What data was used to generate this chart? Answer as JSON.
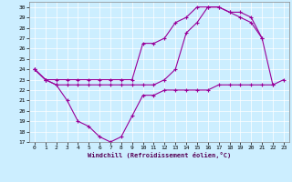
{
  "xlabel": "Windchill (Refroidissement éolien,°C)",
  "xlim": [
    -0.5,
    23.5
  ],
  "ylim": [
    17,
    30.5
  ],
  "yticks": [
    17,
    18,
    19,
    20,
    21,
    22,
    23,
    24,
    25,
    26,
    27,
    28,
    29,
    30
  ],
  "xticks": [
    0,
    1,
    2,
    3,
    4,
    5,
    6,
    7,
    8,
    9,
    10,
    11,
    12,
    13,
    14,
    15,
    16,
    17,
    18,
    19,
    20,
    21,
    22,
    23
  ],
  "bg_color": "#cceeff",
  "line_color": "#990099",
  "series": [
    [
      24.0,
      23.0,
      22.5,
      21.0,
      19.0,
      18.5,
      17.5,
      17.0,
      17.5,
      19.5,
      21.5,
      21.5,
      22.0,
      22.0,
      22.0,
      22.0,
      22.0,
      22.5,
      22.5,
      22.5,
      22.5,
      22.5,
      22.5,
      23.0
    ],
    [
      24.0,
      23.0,
      22.5,
      22.5,
      22.5,
      22.5,
      22.5,
      22.5,
      22.5,
      22.5,
      22.5,
      22.5,
      23.0,
      24.0,
      27.5,
      28.5,
      30.0,
      30.0,
      29.5,
      29.0,
      28.5,
      27.0,
      22.5,
      null
    ],
    [
      24.0,
      23.0,
      23.0,
      23.0,
      23.0,
      23.0,
      23.0,
      23.0,
      23.0,
      23.0,
      26.5,
      26.5,
      27.0,
      28.5,
      29.0,
      30.0,
      30.0,
      30.0,
      29.5,
      29.5,
      29.0,
      27.0,
      null,
      null
    ]
  ]
}
